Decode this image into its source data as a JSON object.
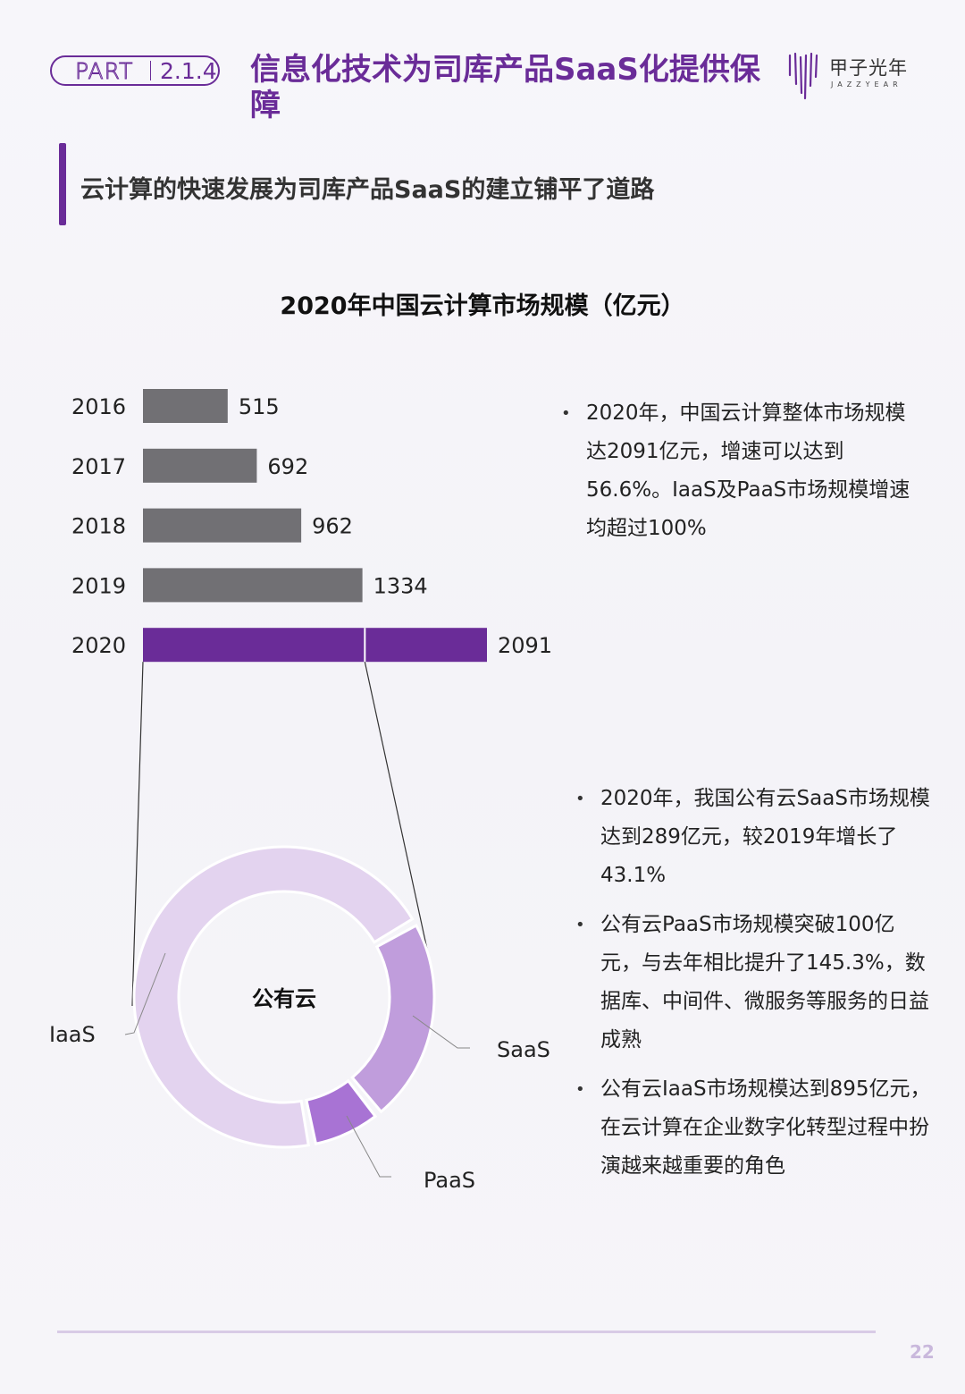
{
  "header": {
    "part_label": "PART",
    "section_number": "2.1.4",
    "title": "信息化技术为司库产品SaaS化提供保障",
    "logo_cn": "甲子光年",
    "logo_en": "JAZZYEAR"
  },
  "subheading": "云计算的快速发展为司库产品SaaS的建立铺平了道路",
  "chart_data": [
    {
      "type": "bar",
      "orientation": "horizontal",
      "title": "2020年中国云计算市场规模（亿元）",
      "categories": [
        "2016",
        "2017",
        "2018",
        "2019",
        "2020"
      ],
      "values": [
        515,
        692,
        962,
        1334,
        2091
      ],
      "value_labels": [
        "515",
        "692",
        "962",
        "1334",
        "2091"
      ],
      "highlight_category": "2020",
      "colors": {
        "default": "#717074",
        "highlight": "#6a2c98"
      }
    },
    {
      "type": "pie",
      "style": "donut",
      "center_label": "公有云",
      "labels": [
        "IaaS",
        "SaaS",
        "PaaS"
      ],
      "values": [
        895,
        289,
        100
      ],
      "colors": [
        "#e3d3ef",
        "#c09ddc",
        "#a873d4"
      ]
    }
  ],
  "bullets_top": [
    "2020年，中国云计算整体市场规模达2091亿元，增速可以达到56.6%。IaaS及PaaS市场规模增速均超过100%"
  ],
  "bullets_bottom": [
    "2020年，我国公有云SaaS市场规模达到289亿元，较2019年增长了43.1%",
    "公有云PaaS市场规模突破100亿元，与去年相比提升了145.3%，数据库、中间件、微服务等服务的日益成熟",
    "公有云IaaS市场规模达到895亿元，在云计算在企业数字化转型过程中扮演越来越重要的角色"
  ],
  "footer": {
    "page_number": "22"
  }
}
